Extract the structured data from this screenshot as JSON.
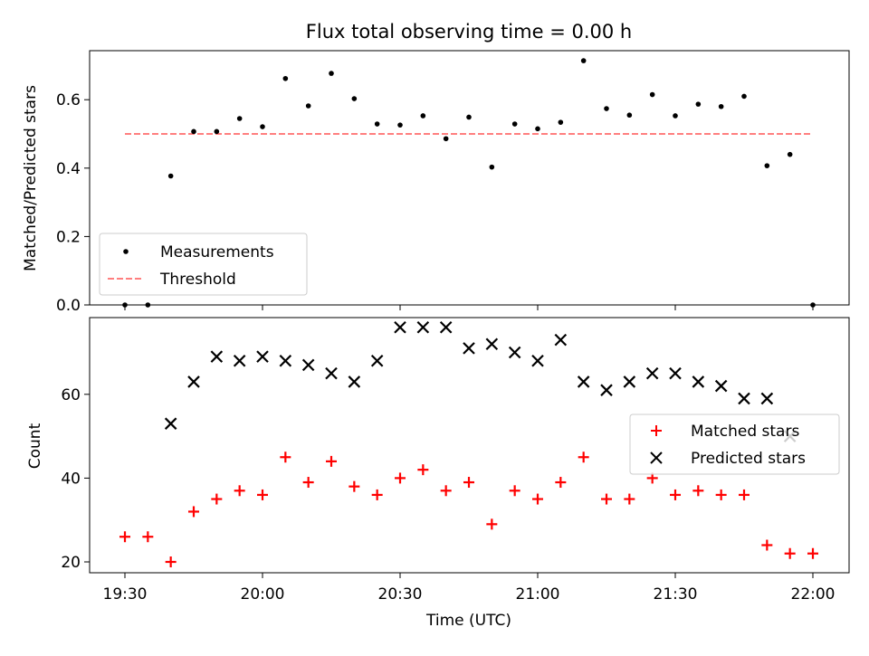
{
  "chart_data": [
    {
      "type": "scatter",
      "title": "Flux total observing time = 0.00 h",
      "ylabel": "Matched/Predicted stars",
      "xlabel": "",
      "ylim": [
        0,
        0.75
      ],
      "yticks": [
        "0.0",
        "0.2",
        "0.4",
        "0.6"
      ],
      "legend": {
        "position": "lower-left",
        "entries": [
          "Measurements",
          "Threshold"
        ]
      },
      "threshold": {
        "name": "Threshold",
        "value": 0.5,
        "x_range": [
          "19:30",
          "22:00"
        ],
        "color": "#ff7f7f",
        "style": "dashed"
      },
      "series": [
        {
          "name": "Measurements",
          "color": "#000000",
          "marker": "dot",
          "x": [
            "19:30",
            "19:35",
            "19:40",
            "19:45",
            "19:50",
            "19:55",
            "20:00",
            "20:05",
            "20:10",
            "20:15",
            "20:20",
            "20:25",
            "20:30",
            "20:35",
            "20:40",
            "20:45",
            "20:50",
            "20:55",
            "21:00",
            "21:05",
            "21:10",
            "21:15",
            "21:20",
            "21:25",
            "21:30",
            "21:35",
            "21:40",
            "21:45",
            "21:50",
            "21:55",
            "22:00"
          ],
          "y": [
            0.0,
            0.0,
            0.377,
            0.507,
            0.507,
            0.545,
            0.521,
            0.662,
            0.582,
            0.677,
            0.603,
            0.529,
            0.526,
            0.553,
            0.486,
            0.549,
            0.403,
            0.529,
            0.515,
            0.534,
            0.714,
            0.574,
            0.555,
            0.615,
            0.553,
            0.587,
            0.58,
            0.61,
            0.407,
            0.44,
            0.0
          ]
        }
      ]
    },
    {
      "type": "scatter",
      "title": "",
      "ylabel": "Count",
      "xlabel": "Time (UTC)",
      "ylim": [
        17.5,
        77.5
      ],
      "yticks": [
        "20",
        "40",
        "60"
      ],
      "xticks": [
        "19:30",
        "20:00",
        "20:30",
        "21:00",
        "21:30",
        "22:00"
      ],
      "legend": {
        "position": "right",
        "entries": [
          "Matched stars",
          "Predicted stars"
        ]
      },
      "series": [
        {
          "name": "Matched stars",
          "color": "#ff0000",
          "marker": "plus",
          "x": [
            "19:30",
            "19:35",
            "19:40",
            "19:45",
            "19:50",
            "19:55",
            "20:00",
            "20:05",
            "20:10",
            "20:15",
            "20:20",
            "20:25",
            "20:30",
            "20:35",
            "20:40",
            "20:45",
            "20:50",
            "20:55",
            "21:00",
            "21:05",
            "21:10",
            "21:15",
            "21:20",
            "21:25",
            "21:30",
            "21:35",
            "21:40",
            "21:45",
            "21:50",
            "21:55",
            "22:00"
          ],
          "y": [
            26,
            26,
            20,
            32,
            35,
            37,
            36,
            45,
            39,
            44,
            38,
            36,
            40,
            42,
            37,
            39,
            29,
            37,
            35,
            39,
            45,
            35,
            35,
            40,
            36,
            37,
            36,
            36,
            24,
            22,
            22
          ]
        },
        {
          "name": "Predicted stars",
          "color": "#000000",
          "marker": "x",
          "x": [
            "19:40",
            "19:45",
            "19:50",
            "19:55",
            "20:00",
            "20:05",
            "20:10",
            "20:15",
            "20:20",
            "20:25",
            "20:30",
            "20:35",
            "20:40",
            "20:45",
            "20:50",
            "20:55",
            "21:00",
            "21:05",
            "21:10",
            "21:15",
            "21:20",
            "21:25",
            "21:30",
            "21:35",
            "21:40",
            "21:45",
            "21:50",
            "21:55"
          ],
          "y": [
            53,
            63,
            69,
            68,
            69,
            68,
            67,
            65,
            63,
            68,
            76,
            76,
            76,
            71,
            72,
            70,
            68,
            73,
            63,
            61,
            63,
            65,
            65,
            63,
            62,
            59,
            59,
            50
          ]
        }
      ]
    }
  ]
}
